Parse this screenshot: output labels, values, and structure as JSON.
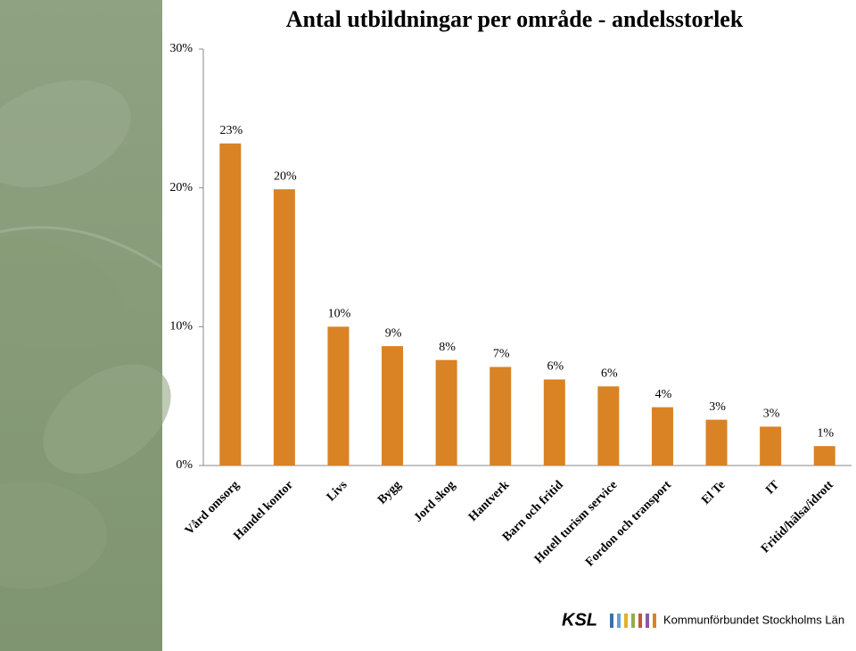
{
  "chart_data": {
    "type": "bar",
    "title": "Antal utbildningar per område - andelsstorlek",
    "categories": [
      "Vård omsorg",
      "Handel kontor",
      "Livs",
      "Bygg",
      "Jord skog",
      "Hantverk",
      "Barn och fritid",
      "Hotell turism service",
      "Fordon och transport",
      "El Te",
      "IT",
      "Fritid/hälsa/idrott"
    ],
    "values": [
      23.2,
      19.9,
      10.0,
      8.6,
      7.6,
      7.1,
      6.2,
      5.7,
      4.2,
      3.3,
      2.8,
      1.4
    ],
    "value_labels": [
      "23%",
      "20%",
      "10%",
      "9%",
      "8%",
      "7%",
      "6%",
      "6%",
      "4%",
      "3%",
      "3%",
      "1%"
    ],
    "color": "#d98324",
    "ylim": [
      0,
      30
    ],
    "yticks": [
      {
        "value": 0,
        "label": "0%"
      },
      {
        "value": 10,
        "label": "10%"
      },
      {
        "value": 20,
        "label": "20%"
      },
      {
        "value": 30,
        "label": "30%"
      }
    ],
    "grid": false
  },
  "footer": {
    "abbr": "KSL",
    "name": "Kommunförbundet Stockholms Län"
  }
}
